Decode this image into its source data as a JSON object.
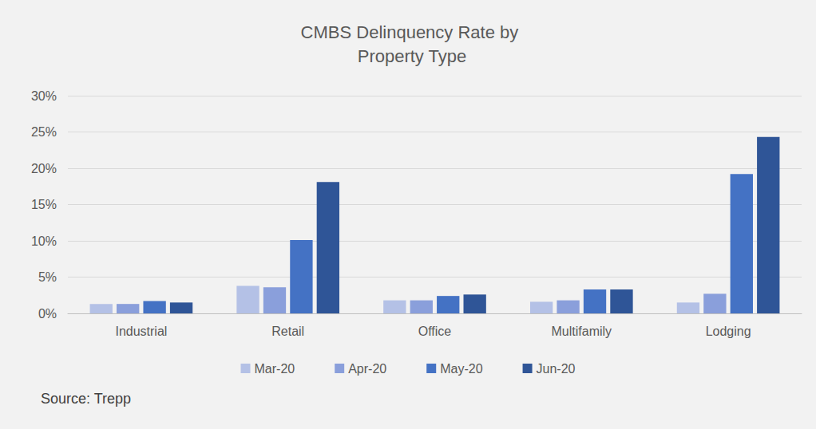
{
  "chart_data": {
    "type": "bar",
    "title": "CMBS Delinquency Rate by Property Type",
    "source": "Source: Trepp",
    "categories": [
      "Industrial",
      "Retail",
      "Office",
      "Multifamily",
      "Lodging"
    ],
    "series": [
      {
        "name": "Mar-20",
        "color": "#b4c1e6",
        "values": [
          1.3,
          3.8,
          1.8,
          1.6,
          1.5
        ]
      },
      {
        "name": "Apr-20",
        "color": "#8a9fdb",
        "values": [
          1.3,
          3.6,
          1.8,
          1.8,
          2.7
        ]
      },
      {
        "name": "May-20",
        "color": "#4472c4",
        "values": [
          1.7,
          10.1,
          2.4,
          3.3,
          19.2
        ]
      },
      {
        "name": "Jun-20",
        "color": "#2f5597",
        "values": [
          1.5,
          18.1,
          2.6,
          3.3,
          24.3
        ]
      }
    ],
    "ylim": [
      0,
      30
    ],
    "yticks": [
      {
        "value": 0,
        "label": "0%"
      },
      {
        "value": 5,
        "label": "5%"
      },
      {
        "value": 10,
        "label": "10%"
      },
      {
        "value": 15,
        "label": "15%"
      },
      {
        "value": 20,
        "label": "20%"
      },
      {
        "value": 25,
        "label": "25%"
      },
      {
        "value": 30,
        "label": "30%"
      }
    ],
    "grid": true,
    "legend": "bottom"
  }
}
